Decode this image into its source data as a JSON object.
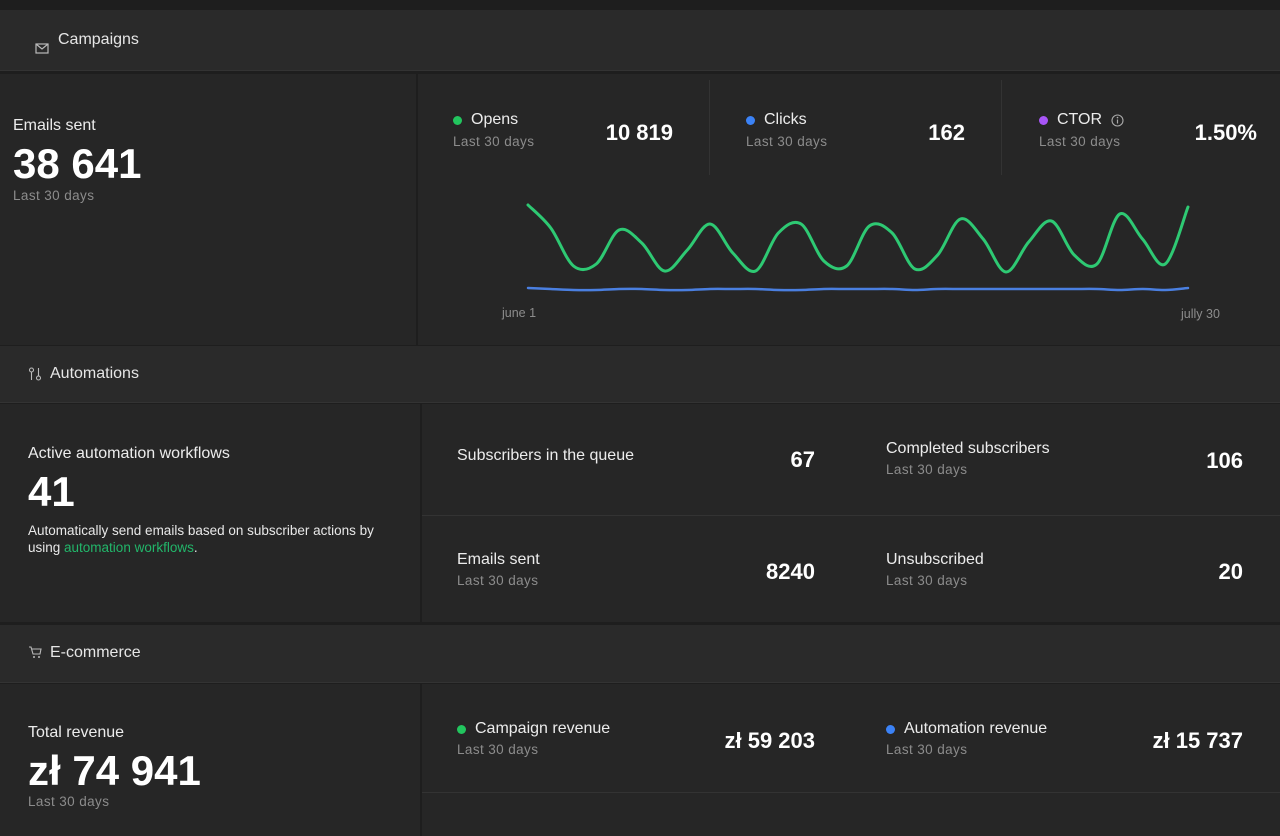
{
  "campaigns": {
    "title": "Campaigns",
    "emails_sent": {
      "label": "Emails sent",
      "value": "38 641",
      "period": "Last 30 days"
    },
    "metrics": [
      {
        "label": "Opens",
        "period": "Last 30 days",
        "value": "10 819",
        "color": "#22c55e"
      },
      {
        "label": "Clicks",
        "period": "Last 30 days",
        "value": "162",
        "color": "#3b82f6"
      },
      {
        "label": "CTOR",
        "period": "Last 30 days",
        "value": "1.50%",
        "color": "#a855f7"
      }
    ],
    "chart": {
      "type": "line",
      "x_labels": [
        "june 1",
        "jully 30"
      ],
      "ylim": [
        0,
        100
      ],
      "series": [
        {
          "color": "#2ec973",
          "values": [
            95,
            72,
            34,
            36,
            70,
            57,
            29,
            50,
            76,
            47,
            29,
            67,
            76,
            39,
            34,
            74,
            67,
            31,
            45,
            81,
            61,
            28,
            58,
            79,
            45,
            36,
            86,
            61,
            36,
            93
          ]
        },
        {
          "color": "#4a7fe0",
          "values": [
            12,
            11,
            10,
            10,
            11,
            11,
            10,
            10,
            11,
            11,
            11,
            10,
            10,
            11,
            11,
            11,
            11,
            10,
            11,
            11,
            11,
            11,
            11,
            11,
            11,
            11,
            10,
            11,
            10,
            12
          ]
        }
      ]
    }
  },
  "automations": {
    "title": "Automations",
    "active": {
      "label": "Active automation workflows",
      "value": "41",
      "description": "Automatically send emails based on subscriber actions by using ",
      "link": "automation workflows",
      "description_end": "."
    },
    "metrics": [
      {
        "label": "Subscribers in the queue",
        "value": "67"
      },
      {
        "label": "Completed subscribers",
        "period": "Last 30 days",
        "value": "106"
      },
      {
        "label": "Emails sent",
        "period": "Last 30 days",
        "value": "8240"
      },
      {
        "label": "Unsubscribed",
        "period": "Last 30 days",
        "value": "20"
      }
    ]
  },
  "ecommerce": {
    "title": "E-commerce",
    "total": {
      "label": "Total revenue",
      "value": "zł 74 941",
      "period": "Last 30 days"
    },
    "metrics": [
      {
        "label": "Campaign revenue",
        "period": "Last 30 days",
        "value": "zł 59 203",
        "color": "#22c55e"
      },
      {
        "label": "Automation revenue",
        "period": "Last 30 days",
        "value": "zł 15 737",
        "color": "#3b82f6"
      }
    ]
  }
}
